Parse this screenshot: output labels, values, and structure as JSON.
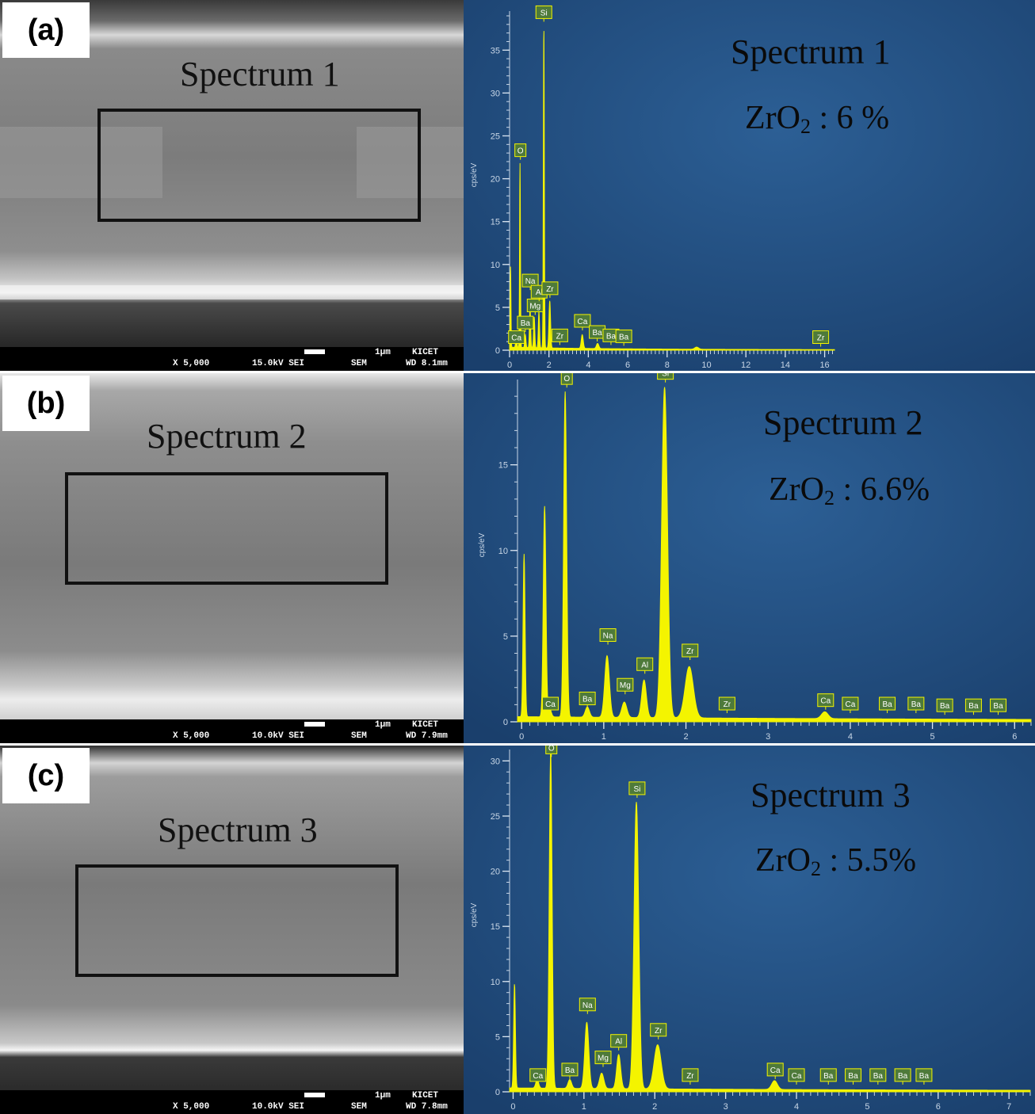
{
  "panels": [
    {
      "label": "(a)",
      "sem": {
        "spectrum_label": "Spectrum 1",
        "magnification": "X 5,000",
        "voltage": "15.0kV SEI",
        "mode": "SEM",
        "scale": "1µm",
        "org": "KICET",
        "wd": "WD 8.1mm"
      },
      "eds": {
        "title": "Spectrum 1",
        "zro2_prefix": "ZrO",
        "zro2_sub": "2",
        "zro2_value": " : 6 %"
      }
    },
    {
      "label": "(b)",
      "sem": {
        "spectrum_label": "Spectrum 2",
        "magnification": "X 5,000",
        "voltage": "10.0kV SEI",
        "mode": "SEM",
        "scale": "1µm",
        "org": "KICET",
        "wd": "WD 7.9mm"
      },
      "eds": {
        "title": "Spectrum 2",
        "zro2_prefix": "ZrO",
        "zro2_sub": "2",
        "zro2_value": " : 6.6%"
      }
    },
    {
      "label": "(c)",
      "sem": {
        "spectrum_label": "Spectrum 3",
        "magnification": "X 5,000",
        "voltage": "10.0kV SEI",
        "mode": "SEM",
        "scale": "1µm",
        "org": "KICET",
        "wd": "WD 7.8mm"
      },
      "eds": {
        "title": "Spectrum 3",
        "zro2_prefix": "ZrO",
        "zro2_sub": "2",
        "zro2_value": " : 5.5%"
      }
    }
  ],
  "colors": {
    "spectrum": "#f4f400",
    "plot_bg": "#1f4a7e",
    "label_bg": "#4e7a3a"
  },
  "chart_data": [
    {
      "type": "line",
      "title": "Spectrum 1",
      "ylabel": "cps/eV",
      "xlim": [
        0,
        16.5
      ],
      "ylim": [
        0,
        39
      ],
      "xticks": [
        0,
        2,
        4,
        6,
        8,
        10,
        12,
        14,
        16
      ],
      "yticks": [
        0,
        5,
        10,
        15,
        20,
        25,
        30,
        35
      ],
      "baseline": 0.3,
      "peaks": [
        {
          "x": 0.05,
          "y": 9.5,
          "w": 0.02
        },
        {
          "x": 0.34,
          "y": 1.5,
          "w": 0.03
        },
        {
          "x": 0.53,
          "y": 21.5,
          "w": 0.022
        },
        {
          "x": 0.8,
          "y": 1.5,
          "w": 0.03
        },
        {
          "x": 1.04,
          "y": 4.7,
          "w": 0.03
        },
        {
          "x": 1.25,
          "y": 3.6,
          "w": 0.03
        },
        {
          "x": 1.49,
          "y": 4.2,
          "w": 0.03
        },
        {
          "x": 1.74,
          "y": 37.5,
          "w": 0.025
        },
        {
          "x": 2.04,
          "y": 5.5,
          "w": 0.04
        },
        {
          "x": 3.69,
          "y": 1.6,
          "w": 0.05
        },
        {
          "x": 4.47,
          "y": 0.6,
          "w": 0.06
        },
        {
          "x": 9.5,
          "y": 0.25,
          "w": 0.1
        }
      ],
      "labels": [
        {
          "text": "Ca",
          "x": 0.35,
          "y": 0.6
        },
        {
          "text": "O",
          "x": 0.55,
          "y": 22.4
        },
        {
          "text": "Ba",
          "x": 0.8,
          "y": 2.3
        },
        {
          "text": "Na",
          "x": 1.05,
          "y": 7.2
        },
        {
          "text": "Mg",
          "x": 1.3,
          "y": 4.3
        },
        {
          "text": "Al",
          "x": 1.5,
          "y": 5.9
        },
        {
          "text": "Si",
          "x": 1.74,
          "y": 38.5
        },
        {
          "text": "Zr",
          "x": 2.05,
          "y": 6.3
        },
        {
          "text": "Zr",
          "x": 2.55,
          "y": 0.8
        },
        {
          "text": "Ca",
          "x": 3.7,
          "y": 2.5
        },
        {
          "text": "Ba",
          "x": 4.45,
          "y": 1.2
        },
        {
          "text": "Ba",
          "x": 5.15,
          "y": 0.8
        },
        {
          "text": "Ba",
          "x": 5.8,
          "y": 0.7
        },
        {
          "text": "Zr",
          "x": 15.8,
          "y": 0.6
        }
      ]
    },
    {
      "type": "line",
      "title": "Spectrum 2",
      "ylabel": "cps/eV",
      "xlim": [
        -0.05,
        6.2
      ],
      "ylim": [
        0,
        19.7
      ],
      "xticks": [
        0,
        1,
        2,
        3,
        4,
        5,
        6
      ],
      "yticks": [
        0,
        5,
        10,
        15
      ],
      "baseline": 0.25,
      "peaks": [
        {
          "x": 0.03,
          "y": 9.5,
          "w": 0.012
        },
        {
          "x": 0.28,
          "y": 12.3,
          "w": 0.016
        },
        {
          "x": 0.34,
          "y": 0.5,
          "w": 0.02
        },
        {
          "x": 0.53,
          "y": 19.0,
          "w": 0.018
        },
        {
          "x": 0.8,
          "y": 0.6,
          "w": 0.025
        },
        {
          "x": 1.04,
          "y": 3.6,
          "w": 0.028
        },
        {
          "x": 1.25,
          "y": 0.9,
          "w": 0.03
        },
        {
          "x": 1.49,
          "y": 2.2,
          "w": 0.028
        },
        {
          "x": 1.74,
          "y": 19.3,
          "w": 0.035
        },
        {
          "x": 2.04,
          "y": 3.0,
          "w": 0.05
        },
        {
          "x": 3.69,
          "y": 0.4,
          "w": 0.04
        }
      ],
      "labels": [
        {
          "text": "O",
          "x": 0.55,
          "y": 19.6
        },
        {
          "text": "Si",
          "x": 1.75,
          "y": 19.9
        },
        {
          "text": "Na",
          "x": 1.05,
          "y": 4.6
        },
        {
          "text": "Al",
          "x": 1.5,
          "y": 2.9
        },
        {
          "text": "Zr",
          "x": 2.05,
          "y": 3.7
        },
        {
          "text": "Mg",
          "x": 1.26,
          "y": 1.7
        },
        {
          "text": "Ca",
          "x": 0.35,
          "y": 0.6
        },
        {
          "text": "Ba",
          "x": 0.8,
          "y": 0.9
        },
        {
          "text": "Zr",
          "x": 2.5,
          "y": 0.6
        },
        {
          "text": "Ca",
          "x": 3.7,
          "y": 0.8
        },
        {
          "text": "Ca",
          "x": 4.0,
          "y": 0.6
        },
        {
          "text": "Ba",
          "x": 4.45,
          "y": 0.6
        },
        {
          "text": "Ba",
          "x": 4.8,
          "y": 0.6
        },
        {
          "text": "Ba",
          "x": 5.15,
          "y": 0.5
        },
        {
          "text": "Ba",
          "x": 5.5,
          "y": 0.5
        },
        {
          "text": "Ba",
          "x": 5.8,
          "y": 0.5
        }
      ]
    },
    {
      "type": "line",
      "title": "Spectrum 3",
      "ylabel": "cps/eV",
      "xlim": [
        -0.05,
        7.3
      ],
      "ylim": [
        0,
        30.6
      ],
      "xticks": [
        0,
        1,
        2,
        3,
        4,
        5,
        6,
        7
      ],
      "yticks": [
        0,
        5,
        10,
        15,
        20,
        25,
        30
      ],
      "baseline": 0.3,
      "peaks": [
        {
          "x": 0.02,
          "y": 9.5,
          "w": 0.012
        },
        {
          "x": 0.34,
          "y": 0.8,
          "w": 0.02
        },
        {
          "x": 0.53,
          "y": 30.5,
          "w": 0.02
        },
        {
          "x": 0.8,
          "y": 0.8,
          "w": 0.025
        },
        {
          "x": 1.04,
          "y": 6.0,
          "w": 0.028
        },
        {
          "x": 1.25,
          "y": 1.4,
          "w": 0.03
        },
        {
          "x": 1.49,
          "y": 3.1,
          "w": 0.028
        },
        {
          "x": 1.74,
          "y": 26.0,
          "w": 0.033
        },
        {
          "x": 2.04,
          "y": 4.0,
          "w": 0.05
        },
        {
          "x": 3.69,
          "y": 0.8,
          "w": 0.04
        }
      ],
      "labels": [
        {
          "text": "O",
          "x": 0.54,
          "y": 30.5
        },
        {
          "text": "Si",
          "x": 1.75,
          "y": 26.8
        },
        {
          "text": "Na",
          "x": 1.05,
          "y": 7.2
        },
        {
          "text": "Al",
          "x": 1.49,
          "y": 3.9
        },
        {
          "text": "Zr",
          "x": 2.05,
          "y": 4.9
        },
        {
          "text": "Mg",
          "x": 1.27,
          "y": 2.4
        },
        {
          "text": "Ca",
          "x": 0.35,
          "y": 0.8
        },
        {
          "text": "Ba",
          "x": 0.8,
          "y": 1.3
        },
        {
          "text": "Zr",
          "x": 2.5,
          "y": 0.8
        },
        {
          "text": "Ca",
          "x": 3.7,
          "y": 1.3
        },
        {
          "text": "Ca",
          "x": 4.0,
          "y": 0.8
        },
        {
          "text": "Ba",
          "x": 4.45,
          "y": 0.8
        },
        {
          "text": "Ba",
          "x": 4.8,
          "y": 0.8
        },
        {
          "text": "Ba",
          "x": 5.15,
          "y": 0.8
        },
        {
          "text": "Ba",
          "x": 5.5,
          "y": 0.8
        },
        {
          "text": "Ba",
          "x": 5.8,
          "y": 0.8
        }
      ]
    }
  ]
}
